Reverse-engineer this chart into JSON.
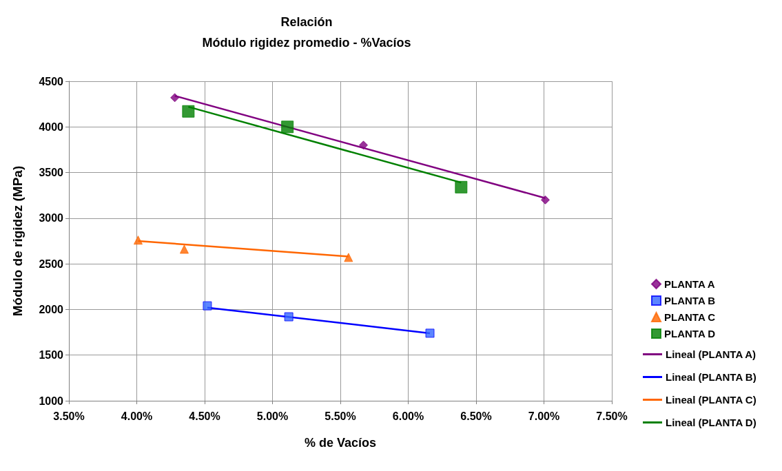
{
  "chart_data": {
    "type": "scatter",
    "title": "Relación",
    "subtitle": "Módulo rigidez promedio - %Vacíos",
    "xlabel": "% de Vacíos",
    "ylabel": "Módulo de rigidez (MPa)",
    "series": [
      {
        "name": "PLANTA A",
        "color": "#800080",
        "marker": "diamond",
        "x": [
          0.0428,
          0.0567,
          0.0701
        ],
        "values": [
          4320,
          3800,
          3200
        ]
      },
      {
        "name": "PLANTA B",
        "color": "#3366ff",
        "marker": "square",
        "x": [
          0.0452,
          0.0512,
          0.0616
        ],
        "values": [
          2040,
          1920,
          1740
        ]
      },
      {
        "name": "PLANTA C",
        "color": "#ff6600",
        "marker": "triangle",
        "x": [
          0.0401,
          0.0435,
          0.0556
        ],
        "values": [
          2760,
          2660,
          2570
        ]
      },
      {
        "name": "PLANTA D",
        "color": "#008000",
        "marker": "square",
        "x": [
          0.0438,
          0.0511,
          0.0639
        ],
        "values": [
          4170,
          4000,
          3340
        ]
      },
      {
        "name": "Lineal (PLANTA A)",
        "type": "line",
        "color": "#800080",
        "marker": "none",
        "x": [
          0.0428,
          0.0701
        ],
        "values": [
          4340,
          3220
        ]
      },
      {
        "name": "Lineal (PLANTA B)",
        "type": "line",
        "color": "#0000ff",
        "marker": "none",
        "x": [
          0.0452,
          0.0616
        ],
        "values": [
          2020,
          1740
        ]
      },
      {
        "name": "Lineal (PLANTA C)",
        "type": "line",
        "color": "#ff6600",
        "marker": "none",
        "x": [
          0.0401,
          0.0556
        ],
        "values": [
          2750,
          2580
        ]
      },
      {
        "name": "Lineal (PLANTA D)",
        "type": "line",
        "color": "#008000",
        "marker": "none",
        "x": [
          0.0438,
          0.0639
        ],
        "values": [
          4220,
          3390
        ]
      }
    ],
    "xlim": [
      0.035,
      0.075
    ],
    "xticks": [
      {
        "value": 0.035,
        "label": "3.50%"
      },
      {
        "value": 0.04,
        "label": "4.00%"
      },
      {
        "value": 0.045,
        "label": "4.50%"
      },
      {
        "value": 0.05,
        "label": "5.00%"
      },
      {
        "value": 0.055,
        "label": "5.50%"
      },
      {
        "value": 0.06,
        "label": "6.00%"
      },
      {
        "value": 0.065,
        "label": "6.50%"
      },
      {
        "value": 0.07,
        "label": "7.00%"
      },
      {
        "value": 0.075,
        "label": "7.50%"
      }
    ],
    "ylim": [
      1000,
      4500
    ],
    "yticks": [
      1000,
      1500,
      2000,
      2500,
      3000,
      3500,
      4000,
      4500
    ],
    "grid": true,
    "legend": "right"
  }
}
